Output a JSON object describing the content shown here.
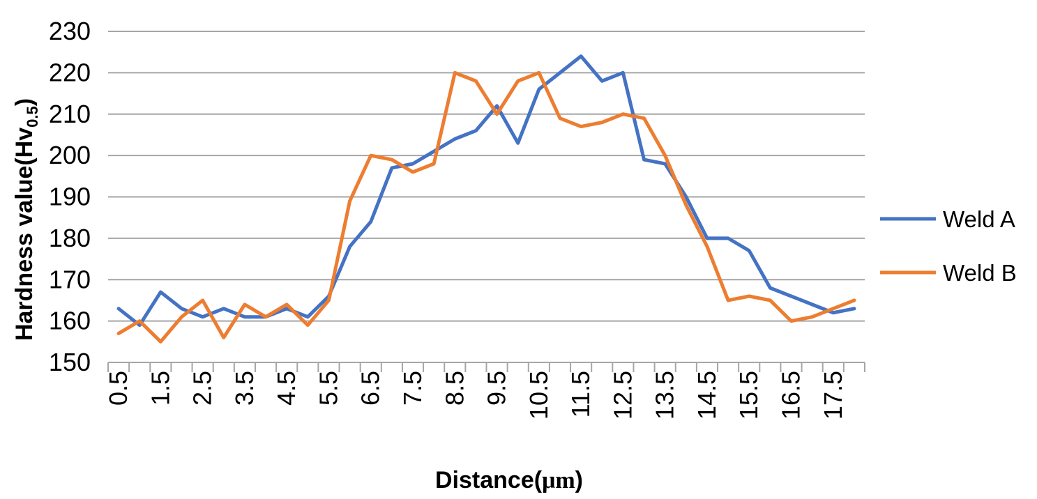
{
  "chart_data": {
    "type": "line",
    "x": [
      "0.5",
      "",
      "1.5",
      "",
      "2.5",
      "",
      "3.5",
      "",
      "4.5",
      "",
      "5.5",
      "",
      "6.5",
      "",
      "7.5",
      "",
      "8.5",
      "",
      "9.5",
      "",
      "10.5",
      "",
      "11.5",
      "",
      "12.5",
      "",
      "13.5",
      "",
      "14.5",
      "",
      "15.5",
      "",
      "16.5",
      "",
      "17.5",
      ""
    ],
    "x_tick_labels": [
      "0.5",
      "1.5",
      "2.5",
      "3.5",
      "4.5",
      "5.5",
      "6.5",
      "7.5",
      "8.5",
      "9.5",
      "10.5",
      "11.5",
      "12.5",
      "13.5",
      "14.5",
      "15.5",
      "16.5",
      "17.5"
    ],
    "y_ticks": [
      "150",
      "160",
      "170",
      "180",
      "190",
      "200",
      "210",
      "220",
      "230"
    ],
    "ylim": [
      150,
      230
    ],
    "grid": true,
    "legend_position": "right",
    "series": [
      {
        "name": "Weld A",
        "color": "#4472C4",
        "values": [
          163,
          159,
          167,
          163,
          161,
          163,
          161,
          161,
          163,
          161,
          166,
          178,
          184,
          197,
          198,
          201,
          204,
          206,
          212,
          203,
          216,
          220,
          224,
          218,
          220,
          199,
          198,
          190,
          180,
          180,
          177,
          168,
          166,
          164,
          162,
          163
        ]
      },
      {
        "name": "Weld B",
        "color": "#ED7D31",
        "values": [
          157,
          160,
          155,
          161,
          165,
          156,
          164,
          161,
          164,
          159,
          165,
          189,
          200,
          199,
          196,
          198,
          220,
          218,
          210,
          218,
          220,
          209,
          207,
          208,
          210,
          209,
          200,
          188,
          178,
          165,
          166,
          165,
          160,
          161,
          163,
          165
        ]
      }
    ],
    "ylabel": {
      "main": "Hardness value(Hv",
      "subscript": "0.5",
      "suffix": ")"
    },
    "xlabel": {
      "prefix": "Distance(",
      "unit": "μm",
      "suffix": ")"
    }
  }
}
